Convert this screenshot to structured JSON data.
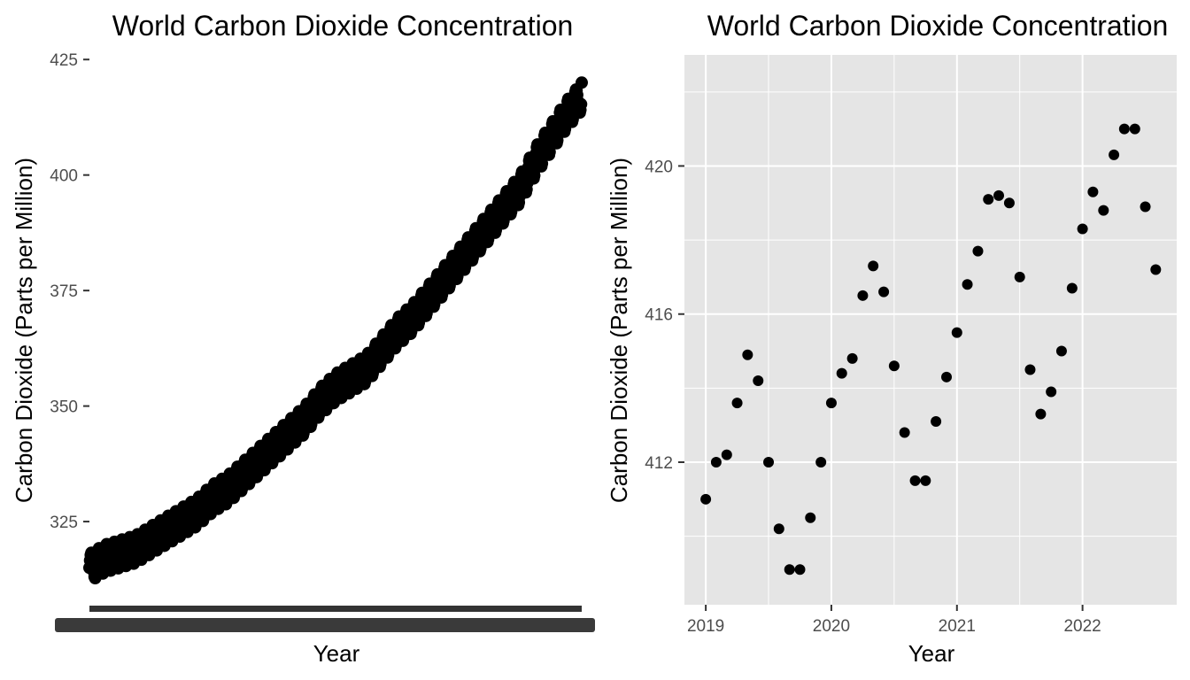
{
  "chart_data": [
    {
      "type": "scatter",
      "title": "World Carbon Dioxide Concentration",
      "xlabel": "Year",
      "ylabel": "Carbon Dioxide (Parts per Million)",
      "ylim": [
        307,
        426
      ],
      "yticks": [
        325,
        350,
        375,
        400,
        425
      ],
      "xtick_labels_overplotted": true,
      "grid": false,
      "background": "#ffffff",
      "point_color": "#000000",
      "series": [
        {
          "x": [
            1958,
            1960,
            1962,
            1964,
            1966,
            1968,
            1970,
            1972,
            1974,
            1976,
            1978,
            1980,
            1982,
            1984,
            1986,
            1988,
            1990,
            1992,
            1994,
            1996,
            1998,
            2000,
            2002,
            2004,
            2006,
            2008,
            2010,
            2012,
            2014,
            2016,
            2018,
            2020,
            2022
          ],
          "y": [
            315,
            317,
            318,
            319,
            321,
            323,
            325,
            327,
            330,
            332,
            335,
            338,
            341,
            344,
            347,
            351,
            354,
            356,
            358,
            362,
            366,
            369,
            373,
            377,
            381,
            385,
            389,
            393,
            397,
            403,
            408,
            413,
            417
          ],
          "seasonal_amplitude": 3
        }
      ]
    },
    {
      "type": "scatter",
      "title": "World Carbon Dioxide Concentration",
      "xlabel": "Year",
      "ylabel": "Carbon Dioxide (Parts per Million)",
      "xlim": [
        2018.83,
        2022.75
      ],
      "ylim": [
        408.15,
        423.0
      ],
      "xticks": [
        2019,
        2020,
        2021,
        2022
      ],
      "yticks": [
        412,
        416,
        420
      ],
      "grid": true,
      "background": "#e5e5e5",
      "gridline_color": "#ffffff",
      "point_color": "#000000",
      "series": [
        {
          "x": [
            2019.0,
            2019.083,
            2019.167,
            2019.25,
            2019.333,
            2019.417,
            2019.5,
            2019.583,
            2019.667,
            2019.75,
            2019.833,
            2019.917,
            2020.0,
            2020.083,
            2020.167,
            2020.25,
            2020.333,
            2020.417,
            2020.5,
            2020.583,
            2020.667,
            2020.75,
            2020.833,
            2020.917,
            2021.0,
            2021.083,
            2021.167,
            2021.25,
            2021.333,
            2021.417,
            2021.5,
            2021.583,
            2021.667,
            2021.75,
            2021.833,
            2021.917,
            2022.0,
            2022.083,
            2022.167,
            2022.25,
            2022.333,
            2022.417,
            2022.5,
            2022.583
          ],
          "y": [
            411.0,
            412.0,
            412.2,
            413.6,
            414.9,
            414.2,
            412.0,
            410.2,
            409.1,
            409.1,
            410.5,
            412.0,
            413.6,
            414.4,
            414.8,
            416.5,
            417.3,
            416.6,
            414.6,
            412.8,
            411.5,
            411.5,
            413.1,
            414.3,
            415.5,
            416.8,
            417.7,
            419.1,
            419.2,
            419.0,
            417.0,
            414.5,
            413.3,
            413.9,
            415.0,
            416.7,
            418.3,
            419.3,
            418.8,
            420.3,
            421.0,
            421.0,
            418.9,
            417.2
          ]
        }
      ]
    }
  ]
}
